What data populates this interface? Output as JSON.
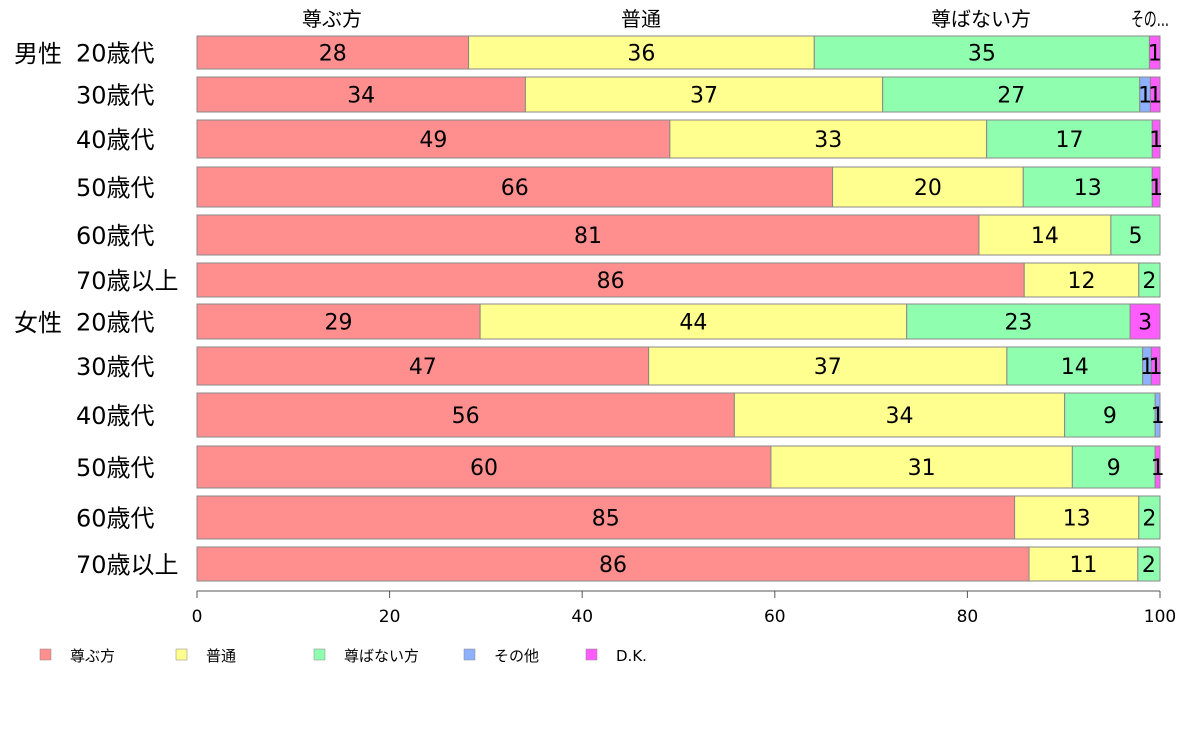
{
  "chart_data": {
    "type": "bar",
    "orientation": "horizontal",
    "stacked": true,
    "xlim": [
      0,
      100
    ],
    "x_ticks": [
      "0",
      "20",
      "40",
      "60",
      "80",
      "100"
    ],
    "top_labels": [
      "尊ぶ方",
      "普通",
      "尊ばない方",
      "その..."
    ],
    "groups": [
      {
        "label": "男性",
        "first_row": 0
      },
      {
        "label": "女性",
        "first_row": 6
      }
    ],
    "categories": [
      "20歳代",
      "30歳代",
      "40歳代",
      "50歳代",
      "60歳代",
      "70歳以上",
      "20歳代",
      "30歳代",
      "40歳代",
      "50歳代",
      "60歳代",
      "70歳以上"
    ],
    "series": [
      {
        "name": "尊ぶ方",
        "color": "#ff8f8f",
        "values": [
          28.2,
          34.1,
          49.1,
          66.0,
          81.2,
          85.9,
          29.4,
          46.9,
          55.8,
          59.6,
          84.9,
          86.4
        ],
        "labels": [
          "28",
          "34",
          "49",
          "66",
          "81",
          "86",
          "29",
          "47",
          "56",
          "60",
          "85",
          "86"
        ]
      },
      {
        "name": "普通",
        "color": "#ffff8f",
        "values": [
          35.9,
          37.1,
          32.9,
          19.8,
          13.7,
          11.9,
          44.3,
          37.2,
          34.3,
          31.3,
          12.9,
          11.3
        ],
        "labels": [
          "36",
          "37",
          "33",
          "20",
          "14",
          "12",
          "44",
          "37",
          "34",
          "31",
          "13",
          "11"
        ]
      },
      {
        "name": "尊ばない方",
        "color": "#8fffaf",
        "values": [
          34.8,
          26.7,
          17.2,
          13.4,
          5.1,
          2.2,
          23.2,
          14.1,
          9.4,
          8.6,
          2.2,
          2.3
        ],
        "labels": [
          "35",
          "27",
          "17",
          "13",
          "5",
          "2",
          "23",
          "14",
          "9",
          "9",
          "2",
          "2"
        ]
      },
      {
        "name": "その他",
        "color": "#8fafff",
        "values": [
          0,
          1.1,
          0,
          0,
          0,
          0,
          0,
          0.9,
          0.5,
          0,
          0,
          0
        ],
        "labels": [
          "",
          "1",
          "",
          "",
          "",
          "",
          "",
          "1",
          "1",
          "",
          "",
          ""
        ]
      },
      {
        "name": "D.K.",
        "color": "#ff5cff",
        "values": [
          1.1,
          1.0,
          0.8,
          0.8,
          0,
          0,
          3.1,
          0.9,
          0,
          0.5,
          0,
          0
        ],
        "labels": [
          "1",
          "1",
          "1",
          "1",
          "",
          "",
          "3",
          "1",
          "",
          "1",
          "",
          ""
        ]
      }
    ],
    "legend_position": "bottom",
    "grid": false
  }
}
